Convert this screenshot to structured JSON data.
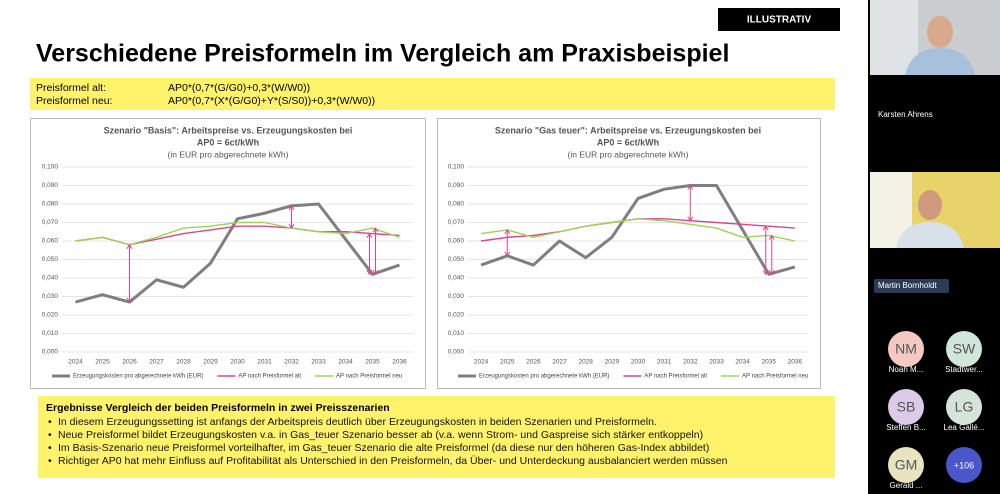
{
  "slide": {
    "badge": "ILLUSTRATIV",
    "title": "Verschiedene Preisformeln im Vergleich am Praxisbeispiel",
    "formulas": [
      {
        "label": "Preisformel alt:",
        "formula": "AP0*(0,7*(G/G0)+0,3*(W/W0))"
      },
      {
        "label": "Preisformel neu:",
        "formula": "AP0*(0,7*(X*(G/G0)+Y*(S/S0))+0,3*(W/W0))"
      }
    ],
    "results": {
      "heading": "Ergebnisse Vergleich der beiden Preisformeln in zwei Preisszenarien",
      "bullets": [
        "In diesem Erzeugungssetting ist anfangs der Arbeitspreis deutlich über Erzeugungskosten in beiden Szenarien und Preisformeln.",
        "Neue Preisformel bildet Erzeugungskosten v.a. in Gas_teuer Szenario besser ab (v.a. wenn Strom- und Gaspreise sich stärker entkoppeln)",
        "Im Basis-Szenario neue Preisformel vorteilhafter, im Gas_teuer Szenario die alte Preisformel (da diese nur den höheren Gas-Index abbildet)",
        "Richtiger AP0 hat mehr Einfluss auf Profitabilität als Unterschied in den Preisformeln, da Über- und Unterdeckung ausbalanciert werden müssen"
      ]
    }
  },
  "chart_data": [
    {
      "type": "line",
      "title": "Szenario \"Basis\": Arbeitspreise vs. Erzeugungskosten bei",
      "subtitle": "AP0 = 6ct/kWh",
      "note": "(in EUR pro abgerechnete kWh)",
      "categories": [
        "2024",
        "2025",
        "2026",
        "2027",
        "2028",
        "2029",
        "2030",
        "2031",
        "2032",
        "2033",
        "2034",
        "2035",
        "2036"
      ],
      "series": [
        {
          "name": "Erzeugungskosten pro abgerechnete kWh (EUR)",
          "color": "#7f7f7f",
          "values": [
            0.027,
            0.031,
            0.027,
            0.039,
            0.035,
            0.048,
            0.072,
            0.075,
            0.079,
            0.08,
            0.061,
            0.042,
            0.047
          ]
        },
        {
          "name": "AP nach Preisformel alt",
          "color": "#d9468f",
          "values": [
            0.06,
            0.062,
            0.058,
            0.061,
            0.064,
            0.066,
            0.068,
            0.068,
            0.067,
            0.065,
            0.065,
            0.064,
            0.063
          ]
        },
        {
          "name": "AP nach Preisformel neu",
          "color": "#9bd45a",
          "values": [
            0.06,
            0.062,
            0.058,
            0.062,
            0.067,
            0.068,
            0.07,
            0.07,
            0.067,
            0.065,
            0.064,
            0.067,
            0.062
          ]
        }
      ],
      "ylim": [
        0,
        0.1
      ],
      "yticks": [
        {
          "value": 0,
          "label": "0,000"
        },
        {
          "value": 0.01,
          "label": "0,010"
        },
        {
          "value": 0.02,
          "label": "0,020"
        },
        {
          "value": 0.03,
          "label": "0,030"
        },
        {
          "value": 0.04,
          "label": "0,040"
        },
        {
          "value": 0.05,
          "label": "0,050"
        },
        {
          "value": 0.06,
          "label": "0,060"
        },
        {
          "value": 0.07,
          "label": "0,070"
        },
        {
          "value": 0.08,
          "label": "0,080"
        },
        {
          "value": 0.09,
          "label": "0,090"
        },
        {
          "value": 0.1,
          "label": "0,100"
        }
      ],
      "grid": true
    },
    {
      "type": "line",
      "title": "Szenario \"Gas teuer\": Arbeitspreise vs. Erzeugungskosten bei",
      "subtitle": "AP0 = 6ct/kWh",
      "note": "(in EUR pro abgerechnete kWh)",
      "categories": [
        "2024",
        "2025",
        "2026",
        "2027",
        "2028",
        "2029",
        "2030",
        "2031",
        "2032",
        "2033",
        "2034",
        "2035",
        "2036"
      ],
      "series": [
        {
          "name": "Erzeugungskosten pro abgerechnete kWh (EUR)",
          "color": "#7f7f7f",
          "values": [
            0.047,
            0.052,
            0.047,
            0.06,
            0.051,
            0.062,
            0.083,
            0.088,
            0.09,
            0.09,
            0.066,
            0.042,
            0.046
          ]
        },
        {
          "name": "AP nach Preisformel alt",
          "color": "#d9468f",
          "values": [
            0.06,
            0.062,
            0.063,
            0.065,
            0.068,
            0.07,
            0.072,
            0.072,
            0.071,
            0.07,
            0.069,
            0.068,
            0.067
          ]
        },
        {
          "name": "AP nach Preisformel neu",
          "color": "#9bd45a",
          "values": [
            0.064,
            0.066,
            0.062,
            0.065,
            0.068,
            0.07,
            0.072,
            0.071,
            0.069,
            0.067,
            0.062,
            0.063,
            0.06
          ]
        }
      ],
      "ylim": [
        0,
        0.1
      ],
      "yticks": [
        {
          "value": 0,
          "label": "0,000"
        },
        {
          "value": 0.01,
          "label": "0,010"
        },
        {
          "value": 0.02,
          "label": "0,020"
        },
        {
          "value": 0.03,
          "label": "0,030"
        },
        {
          "value": 0.04,
          "label": "0,040"
        },
        {
          "value": 0.05,
          "label": "0,050"
        },
        {
          "value": 0.06,
          "label": "0,060"
        },
        {
          "value": 0.07,
          "label": "0,070"
        },
        {
          "value": 0.08,
          "label": "0,080"
        },
        {
          "value": 0.09,
          "label": "0,090"
        },
        {
          "value": 0.1,
          "label": "0,100"
        }
      ],
      "grid": true
    }
  ],
  "call": {
    "videos": [
      {
        "name": "Karsten Ahrens"
      },
      {
        "name": "Martin Bornholdt"
      }
    ],
    "participants": [
      {
        "initials": "NM",
        "name": "Noah M..."
      },
      {
        "initials": "SW",
        "name": "Stadtwer..."
      },
      {
        "initials": "SB",
        "name": "Steffen B..."
      },
      {
        "initials": "LG",
        "name": "Lea Gallé..."
      },
      {
        "initials": "GM",
        "name": "Gerald ..."
      }
    ],
    "more": "+106"
  }
}
